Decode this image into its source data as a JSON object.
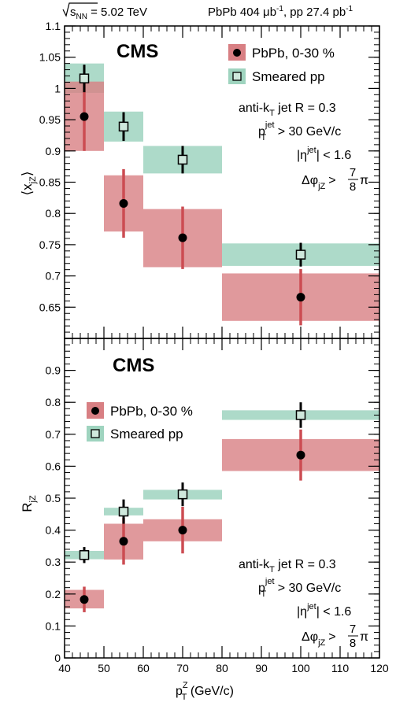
{
  "header": {
    "energy": "√sₙₙ = 5.02 TeV",
    "energy_parts": {
      "sqrt": "s",
      "sub": "NN",
      "rest": " = 5.02 TeV"
    },
    "lumi_parts": {
      "a": "PbPb 404 μb",
      "sup1": "-1",
      "b": ", pp 27.4 pb",
      "sup2": "-1"
    }
  },
  "colors": {
    "pbpb_box": "#d87f83",
    "pbpb_line": "#cc4c52",
    "pp_box": "#9fd4bf",
    "marker": "#000000",
    "open_marker_fill": "#cfe8dc"
  },
  "chart_data": [
    {
      "type": "scatter",
      "experiment_label": "CMS",
      "ylabel_main": "⟨x",
      "ylabel_sub": "jZ",
      "ylabel_end": "⟩",
      "xlim": [
        40,
        120
      ],
      "ylim": [
        0.6,
        1.1
      ],
      "yticks": [
        0.65,
        0.7,
        0.75,
        0.8,
        0.85,
        0.9,
        0.95,
        1,
        1.05,
        1.1
      ],
      "yticklabels": [
        "0.65",
        "0.7",
        "0.75",
        "0.8",
        "0.85",
        "0.9",
        "0.95",
        "1",
        "1.05",
        "1.1"
      ],
      "legend": {
        "placement": "top-right",
        "entries": [
          "PbPb, 0-30 %",
          "Smeared pp"
        ]
      },
      "annotation": {
        "line1": "anti-k",
        "line1_sub": "T",
        "line1_rest": " jet R = 0.3",
        "line2_main": "p",
        "line2_sup": "jet",
        "line2_sub": "T",
        "line2_rest": " > 30 GeV/c",
        "line3_main": "|η",
        "line3_sup": "jet",
        "line3_rest": "| < 1.6",
        "line4_main": "Δφ",
        "line4_sub": "jZ",
        "line4_gt": ">",
        "line4_num": "7",
        "line4_den": "8",
        "line4_pi": "π"
      },
      "series": [
        {
          "name": "PbPb, 0-30 %",
          "x": [
            45,
            55,
            70,
            100
          ],
          "y": [
            0.955,
            0.816,
            0.761,
            0.666
          ],
          "stat_err": [
            0.055,
            0.055,
            0.05,
            0.045
          ],
          "bin_lo": [
            40,
            50,
            60,
            80
          ],
          "bin_hi": [
            50,
            60,
            80,
            120
          ],
          "sys_lo": [
            0.9,
            0.771,
            0.714,
            0.628
          ],
          "sys_hi": [
            1.011,
            0.861,
            0.807,
            0.704
          ]
        },
        {
          "name": "Smeared pp",
          "x": [
            45,
            55,
            70,
            100
          ],
          "y": [
            1.016,
            0.939,
            0.886,
            0.734
          ],
          "stat_err": [
            0.022,
            0.023,
            0.022,
            0.019
          ],
          "bin_lo": [
            40,
            50,
            60,
            80
          ],
          "bin_hi": [
            50,
            60,
            80,
            120
          ],
          "sys_lo": [
            0.993,
            0.915,
            0.864,
            0.716
          ],
          "sys_hi": [
            1.04,
            0.963,
            0.908,
            0.752
          ]
        }
      ]
    },
    {
      "type": "scatter",
      "experiment_label": "CMS",
      "ylabel_main": "R",
      "ylabel_sub": "jZ",
      "xlabel_main": "p",
      "xlabel_sup": "Z",
      "xlabel_sub": "T",
      "xlabel_rest": " (GeV/c)",
      "xlim": [
        40,
        120
      ],
      "ylim": [
        0,
        1.0
      ],
      "xticks": [
        40,
        50,
        60,
        70,
        80,
        90,
        100,
        110,
        120
      ],
      "xticklabels": [
        "40",
        "50",
        "60",
        "70",
        "80",
        "90",
        "100",
        "110",
        "120"
      ],
      "yticks": [
        0,
        0.1,
        0.2,
        0.3,
        0.4,
        0.5,
        0.6,
        0.7,
        0.8,
        0.9
      ],
      "yticklabels": [
        "0",
        "0.1",
        "0.2",
        "0.3",
        "0.4",
        "0.5",
        "0.6",
        "0.7",
        "0.8",
        "0.9"
      ],
      "legend": {
        "placement": "top-left",
        "entries": [
          "PbPb, 0-30 %",
          "Smeared pp"
        ]
      },
      "annotation": {
        "line1": "anti-k",
        "line1_sub": "T",
        "line1_rest": " jet R = 0.3",
        "line2_main": "p",
        "line2_sup": "jet",
        "line2_sub": "T",
        "line2_rest": " > 30 GeV/c",
        "line3_main": "|η",
        "line3_sup": "jet",
        "line3_rest": "| < 1.6",
        "line4_main": "Δφ",
        "line4_sub": "jZ",
        "line4_gt": ">",
        "line4_num": "7",
        "line4_den": "8",
        "line4_pi": "π"
      },
      "series": [
        {
          "name": "PbPb, 0-30 %",
          "x": [
            45,
            55,
            70,
            100
          ],
          "y": [
            0.183,
            0.365,
            0.4,
            0.635
          ],
          "stat_err": [
            0.04,
            0.073,
            0.073,
            0.08
          ],
          "bin_lo": [
            40,
            50,
            60,
            80
          ],
          "bin_hi": [
            50,
            60,
            80,
            120
          ],
          "sys_lo": [
            0.155,
            0.308,
            0.365,
            0.585
          ],
          "sys_hi": [
            0.213,
            0.42,
            0.434,
            0.685
          ]
        },
        {
          "name": "Smeared pp",
          "x": [
            45,
            55,
            70,
            100
          ],
          "y": [
            0.322,
            0.458,
            0.512,
            0.76
          ],
          "stat_err": [
            0.025,
            0.038,
            0.037,
            0.04
          ],
          "bin_lo": [
            40,
            50,
            60,
            80
          ],
          "bin_hi": [
            50,
            60,
            80,
            120
          ],
          "sys_lo": [
            0.309,
            0.446,
            0.496,
            0.745
          ],
          "sys_hi": [
            0.335,
            0.47,
            0.526,
            0.775
          ]
        }
      ]
    }
  ]
}
